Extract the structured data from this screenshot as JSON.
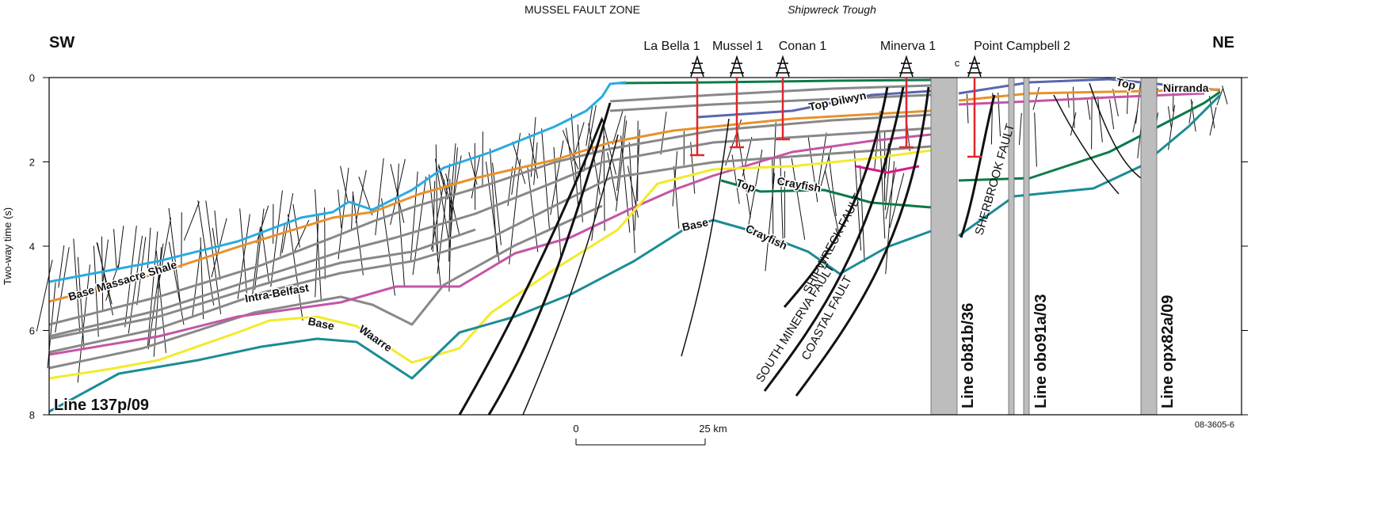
{
  "header": {
    "zone": "MUSSEL FAULT ZONE",
    "trough": "Shipwreck Trough",
    "left": "SW",
    "right": "NE"
  },
  "axis": {
    "label": "Two-way time (s)",
    "ticks": [
      0,
      2,
      4,
      6,
      8
    ]
  },
  "wells": [
    "La Bella 1",
    "Mussel 1",
    "Conan 1",
    "Minerva 1",
    "Point Campbell 2"
  ],
  "well_marker": "c",
  "horizons": [
    "Base Massacre Shale",
    "Intra-Belfast",
    "Base",
    "Waarre",
    "Top Dilwyn",
    "Top",
    "Crayfish",
    "Base",
    "Crayfish",
    "Top",
    "Nirranda"
  ],
  "faults": [
    "SHIPWRECK FAULT",
    "SOUTH MINERVA FAULT",
    "COASTAL FAULT",
    "SHERBROOK FAULT"
  ],
  "lines": [
    "Line 137p/09",
    "Line ob81b/36",
    "Line obo91a/03",
    "Line opx82a/09"
  ],
  "scale": {
    "start": "0",
    "end": "25 km"
  },
  "figure_id": "08-3605-6"
}
